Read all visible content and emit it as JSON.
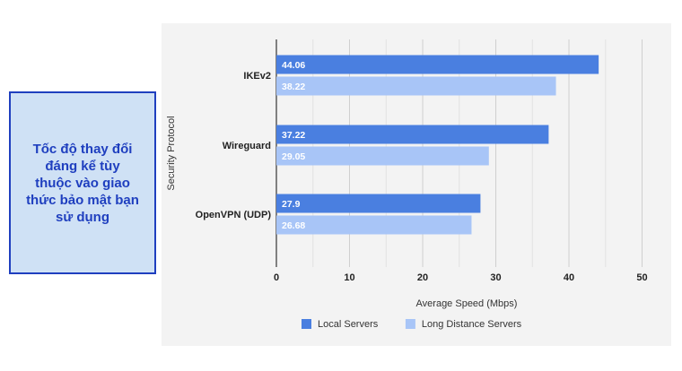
{
  "callout": {
    "lines": [
      "Tốc độ thay đổi",
      "đáng kể tùy",
      "thuộc vào giao",
      "thức bảo mật bạn",
      "sử dụng"
    ]
  },
  "chart_data": {
    "type": "bar",
    "orientation": "horizontal",
    "categories": [
      "IKEv2",
      "Wireguard",
      "OpenVPN (UDP)"
    ],
    "series": [
      {
        "name": "Local Servers",
        "values": [
          44.06,
          37.22,
          27.9
        ],
        "color": "#4a7fe0"
      },
      {
        "name": "Long Distance Servers",
        "values": [
          38.22,
          29.05,
          26.68
        ],
        "color": "#a8c5f7"
      }
    ],
    "xlabel": "Average Speed (Mbps)",
    "ylabel": "Security Protocol",
    "xlim": [
      0,
      53
    ],
    "xticks": [
      0,
      10,
      20,
      30,
      40,
      50
    ],
    "grid": true,
    "legend": "bottom"
  }
}
